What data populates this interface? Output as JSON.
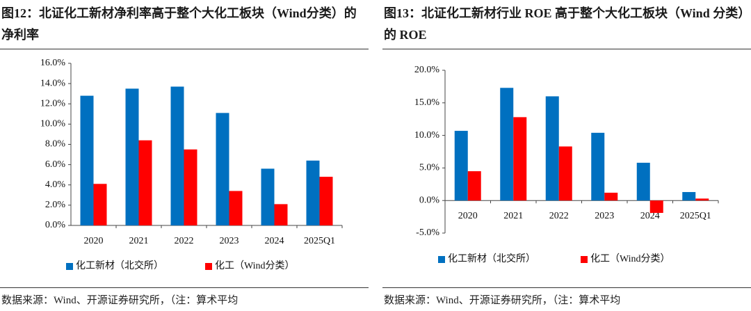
{
  "chart_data": [
    {
      "type": "bar",
      "title": "图12：北证化工新材净利率高于整个大化工板块（Wind分类）的净利率",
      "categories": [
        "2020",
        "2021",
        "2022",
        "2023",
        "2024",
        "2025Q1"
      ],
      "series": [
        {
          "name": "化工新材（北交所）",
          "color": "#0070c0",
          "values": [
            12.8,
            13.5,
            13.7,
            11.1,
            5.6,
            6.4
          ]
        },
        {
          "name": "化工（Wind分类）",
          "color": "#ff0000",
          "values": [
            4.1,
            8.4,
            7.5,
            3.4,
            2.1,
            4.8
          ]
        }
      ],
      "ylim": [
        0,
        16
      ],
      "yticks": [
        {
          "value": 0,
          "label": "0.0%"
        },
        {
          "value": 2,
          "label": "2.0%"
        },
        {
          "value": 4,
          "label": "4.0%"
        },
        {
          "value": 6,
          "label": "6.0%"
        },
        {
          "value": 8,
          "label": "8.0%"
        },
        {
          "value": 10,
          "label": "10.0%"
        },
        {
          "value": 12,
          "label": "12.0%"
        },
        {
          "value": 14,
          "label": "14.0%"
        },
        {
          "value": 16,
          "label": "16.0%"
        }
      ],
      "source": "数据来源：Wind、开源证券研究所，（注：算术平均"
    },
    {
      "type": "bar",
      "title": "图13：北证化工新材行业 ROE 高于整个大化工板块（Wind 分类）的 ROE",
      "categories": [
        "2020",
        "2021",
        "2022",
        "2023",
        "2024",
        "2025Q1"
      ],
      "series": [
        {
          "name": "化工新材（北交所）",
          "color": "#0070c0",
          "values": [
            10.7,
            17.3,
            16.0,
            10.4,
            5.8,
            1.3
          ]
        },
        {
          "name": "化工（Wind分类）",
          "color": "#ff0000",
          "values": [
            4.5,
            12.8,
            8.3,
            1.2,
            -1.9,
            0.3
          ]
        }
      ],
      "ylim": [
        -5,
        20
      ],
      "yticks": [
        {
          "value": -5,
          "label": "-5.0%"
        },
        {
          "value": 0,
          "label": "0.0%"
        },
        {
          "value": 5,
          "label": "5.0%"
        },
        {
          "value": 10,
          "label": "10.0%"
        },
        {
          "value": 15,
          "label": "15.0%"
        },
        {
          "value": 20,
          "label": "20.0%"
        }
      ],
      "source": "数据来源：Wind、开源证券研究所，（注：算术平均"
    }
  ]
}
